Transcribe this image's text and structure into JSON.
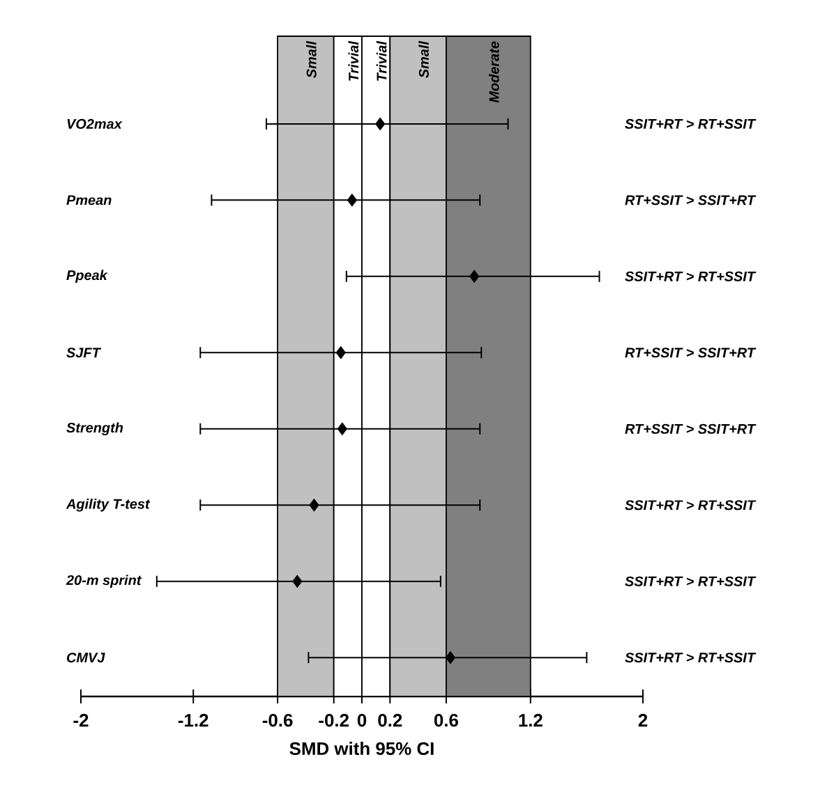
{
  "chart_data": {
    "type": "scatter",
    "orientation": "horizontal",
    "color": "#000000",
    "marker": "diamond",
    "categories": [
      "VO2max",
      "Pmean",
      "Ppeak",
      "SJFT",
      "Strength",
      "Agility T-test",
      "20-m sprint",
      "CMVJ"
    ],
    "values": [
      0.13,
      -0.07,
      0.8,
      -0.15,
      -0.14,
      -0.34,
      -0.46,
      0.63
    ],
    "errors": [
      [
        -0.68,
        1.04
      ],
      [
        -1.07,
        0.84
      ],
      [
        -0.11,
        1.69
      ],
      [
        -1.15,
        0.85
      ],
      [
        -1.15,
        0.84
      ],
      [
        -1.15,
        0.84
      ],
      [
        -1.46,
        0.56
      ],
      [
        -0.38,
        1.6
      ]
    ],
    "xlim": [
      -2,
      2
    ],
    "xticks": [
      -2,
      -1.2,
      -0.6,
      -0.2,
      0,
      0.2,
      0.6,
      1.2,
      2
    ],
    "xlabel": "SMD with 95% CI",
    "bands": [
      {
        "axis": "x",
        "from": -0.6,
        "to": -0.2,
        "label": "Small",
        "color": "#c0c0c0"
      },
      {
        "axis": "x",
        "from": -0.2,
        "to": 0,
        "label": "Trivial",
        "color": "#ffffff"
      },
      {
        "axis": "x",
        "from": 0,
        "to": 0.2,
        "label": "Trivial",
        "color": "#ffffff"
      },
      {
        "axis": "x",
        "from": 0.2,
        "to": 0.6,
        "label": "Small",
        "color": "#c0c0c0"
      },
      {
        "axis": "x",
        "from": 0.6,
        "to": 1.2,
        "label": "Moderate",
        "color": "#808080"
      }
    ],
    "annotations": [
      "SSIT+RT > RT+SSIT",
      "RT+SSIT > SSIT+RT",
      "SSIT+RT > RT+SSIT",
      "RT+SSIT > SSIT+RT",
      "RT+SSIT > SSIT+RT",
      "SSIT+RT > RT+SSIT",
      "SSIT+RT > RT+SSIT",
      "SSIT+RT > RT+SSIT"
    ]
  }
}
